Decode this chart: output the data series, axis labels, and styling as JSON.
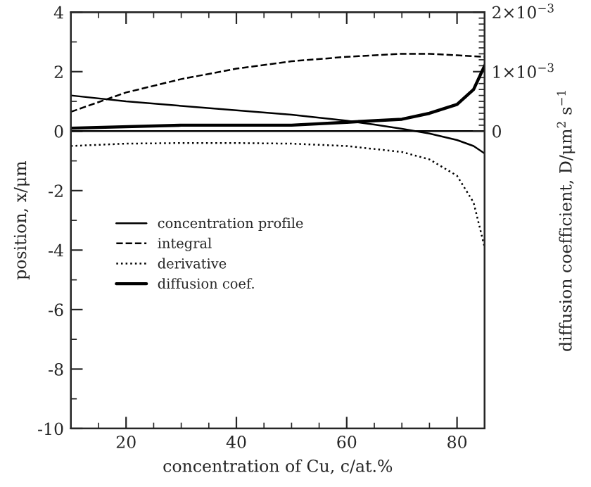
{
  "chart_data": {
    "type": "line",
    "xlabel": "concentration of Cu, c/at.%",
    "ylabel": "position, x/μm",
    "y2label": "diffusion coefficient, D/μm$^{2}$ s$^{−1}$",
    "xlim": [
      10,
      85
    ],
    "ylim": [
      -10,
      4
    ],
    "y2lim": [
      -0.005,
      0.002
    ],
    "xticks": [
      {
        "value": 15,
        "label": null
      },
      20,
      {
        "value": 25,
        "label": null
      },
      {
        "value": 30,
        "label": null
      },
      {
        "value": 35,
        "label": null
      },
      40,
      {
        "value": 45,
        "label": null
      },
      {
        "value": 50,
        "label": null
      },
      {
        "value": 55,
        "label": null
      },
      60,
      {
        "value": 65,
        "label": null
      },
      {
        "value": 70,
        "label": null
      },
      {
        "value": 75,
        "label": null
      },
      80
    ],
    "yticks": [
      -10,
      {
        "value": -9,
        "label": null
      },
      -8,
      {
        "value": -7,
        "label": null
      },
      -6,
      {
        "value": -5,
        "label": null
      },
      -4,
      {
        "value": -3,
        "label": null
      },
      -2,
      {
        "value": -1,
        "label": null
      },
      0,
      {
        "value": 1,
        "label": null
      },
      2,
      {
        "value": 3,
        "label": null
      },
      4
    ],
    "y2ticks": [
      0,
      {
        "value": 0.0001,
        "label": null
      },
      {
        "value": 0.0002,
        "label": null
      },
      {
        "value": 0.0003,
        "label": null
      },
      {
        "value": 0.0004,
        "label": null
      },
      {
        "value": 0.0005,
        "label": null
      },
      {
        "value": 0.0006,
        "label": null
      },
      {
        "value": 0.0007,
        "label": null
      },
      {
        "value": 0.0008,
        "label": null
      },
      {
        "value": 0.0009,
        "label": null
      },
      {
        "value": 0.001,
        "label": "1×10$^{−3}$"
      },
      {
        "value": 0.0011,
        "label": null
      },
      {
        "value": 0.0012,
        "label": null
      },
      {
        "value": 0.0013,
        "label": null
      },
      {
        "value": 0.0014,
        "label": null
      },
      {
        "value": 0.0015,
        "label": null
      },
      {
        "value": 0.0016,
        "label": null
      },
      {
        "value": 0.0017,
        "label": null
      },
      {
        "value": 0.0018,
        "label": null
      },
      {
        "value": 0.0019,
        "label": null
      },
      {
        "value": 0.002,
        "label": "2×10$^{−3}$"
      }
    ],
    "ref_lines": [
      {
        "axis": "y",
        "value": 0,
        "color": "#000000",
        "line_style": "solid"
      }
    ],
    "legend": "bottom left",
    "grid": false,
    "marker": "none",
    "series": [
      {
        "name": "concentration profile",
        "color": "#000000",
        "line_style": "solid",
        "x": [
          10,
          20,
          30,
          40,
          50,
          60,
          65,
          70,
          75,
          80,
          83,
          85
        ],
        "values": [
          1.2,
          1.0,
          0.85,
          0.7,
          0.55,
          0.35,
          0.22,
          0.08,
          -0.08,
          -0.3,
          -0.5,
          -0.75
        ]
      },
      {
        "name": "integral",
        "color": "#000000",
        "line_style": "dashed",
        "x": [
          10,
          20,
          30,
          40,
          50,
          60,
          70,
          75,
          80,
          85
        ],
        "values": [
          0.65,
          1.3,
          1.75,
          2.1,
          2.35,
          2.5,
          2.6,
          2.6,
          2.55,
          2.5
        ]
      },
      {
        "name": "derivative",
        "color": "#000000",
        "line_style": "dotted",
        "x": [
          10,
          20,
          30,
          40,
          50,
          60,
          70,
          75,
          80,
          83,
          85
        ],
        "values": [
          -0.5,
          -0.42,
          -0.4,
          -0.4,
          -0.42,
          -0.5,
          -0.7,
          -0.95,
          -1.5,
          -2.4,
          -3.9
        ]
      },
      {
        "name": "diffusion coef.",
        "color": "#000000",
        "line_style": "solid",
        "axis": "y2",
        "x": [
          10,
          30,
          50,
          60,
          70,
          75,
          80,
          83,
          85
        ],
        "values": [
          5e-05,
          0.0001,
          0.0001,
          0.00015,
          0.0002,
          0.0003,
          0.00045,
          0.0007,
          0.0011
        ]
      }
    ]
  }
}
